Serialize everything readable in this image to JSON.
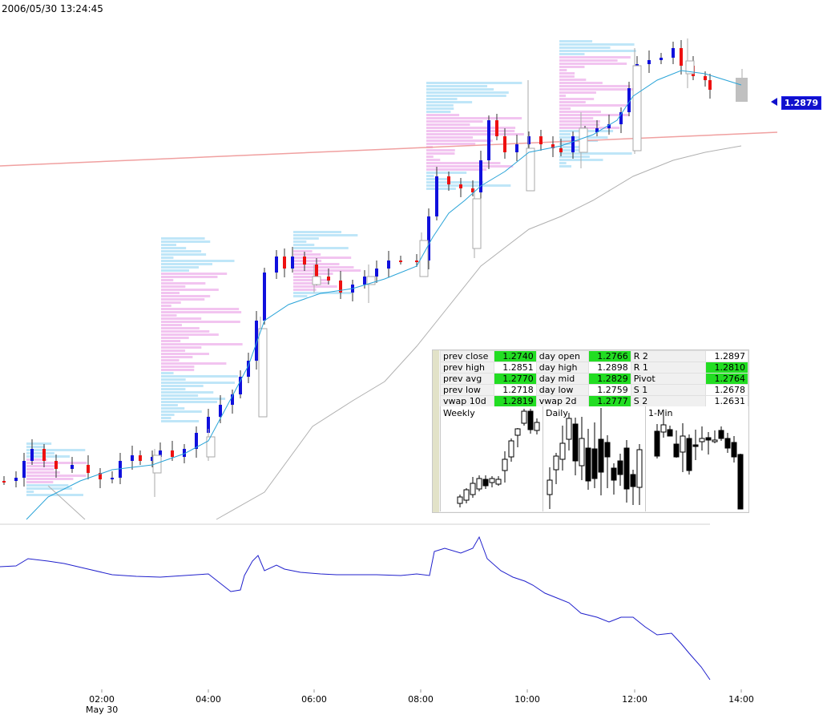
{
  "timestamp": "2006/05/30 13:24:45",
  "price_tag": "1.2879",
  "stats": [
    {
      "label": "prev close",
      "value": "1.2740",
      "hi": true,
      "label2": "day open",
      "value2": "1.2766",
      "hi2": true,
      "label3": "R 2",
      "value3": "1.2897",
      "hi3": false
    },
    {
      "label": "prev high",
      "value": "1.2851",
      "hi": false,
      "label2": "day high",
      "value2": "1.2898",
      "hi2": false,
      "label3": "R 1",
      "value3": "1.2810",
      "hi3": true
    },
    {
      "label": "prev avg",
      "value": "1.2770",
      "hi": true,
      "label2": "day mid",
      "value2": "1.2829",
      "hi2": true,
      "label3": "Pivot",
      "value3": "1.2764",
      "hi3": true
    },
    {
      "label": "prev low",
      "value": "1.2718",
      "hi": false,
      "label2": "day low",
      "value2": "1.2759",
      "hi2": false,
      "label3": "S 1",
      "value3": "1.2678",
      "hi3": false
    },
    {
      "label": "vwap 10d",
      "value": "1.2819",
      "hi": true,
      "label2": "vwap 2d",
      "value2": "1.2777",
      "hi2": true,
      "label3": "S 2",
      "value3": "1.2631",
      "hi3": false
    }
  ],
  "mini_charts": [
    {
      "title": "Weekly"
    },
    {
      "title": "Daily"
    },
    {
      "title": "1-Min"
    }
  ],
  "colors": {
    "up": "#1010dd",
    "down": "#ee1111",
    "vwap": "#2aa4d8",
    "ma_long": "#b0b0b0",
    "resistance": "#f0a0a0",
    "oscillator": "#2020cc",
    "profile_blue": "#bfe6f8",
    "profile_pink": "#f2c4f0"
  },
  "chart_data": {
    "type": "line",
    "x_ticks": [
      "02:00",
      "04:00",
      "06:00",
      "08:00",
      "10:00",
      "12:00",
      "14:00"
    ],
    "x_sub": "May 30",
    "price_line": [
      {
        "x": "00:00",
        "y": 1.27
      },
      {
        "x": "02:00",
        "y": 1.2712
      },
      {
        "x": "04:00",
        "y": 1.2728
      },
      {
        "x": "05:00",
        "y": 1.277
      },
      {
        "x": "06:00",
        "y": 1.2785
      },
      {
        "x": "07:00",
        "y": 1.279
      },
      {
        "x": "08:00",
        "y": 1.28
      },
      {
        "x": "09:00",
        "y": 1.2835
      },
      {
        "x": "10:00",
        "y": 1.2855
      },
      {
        "x": "11:00",
        "y": 1.2858
      },
      {
        "x": "12:00",
        "y": 1.2878
      },
      {
        "x": "12:45",
        "y": 1.289
      },
      {
        "x": "13:25",
        "y": 1.288
      }
    ],
    "last_price": 1.2879
  }
}
